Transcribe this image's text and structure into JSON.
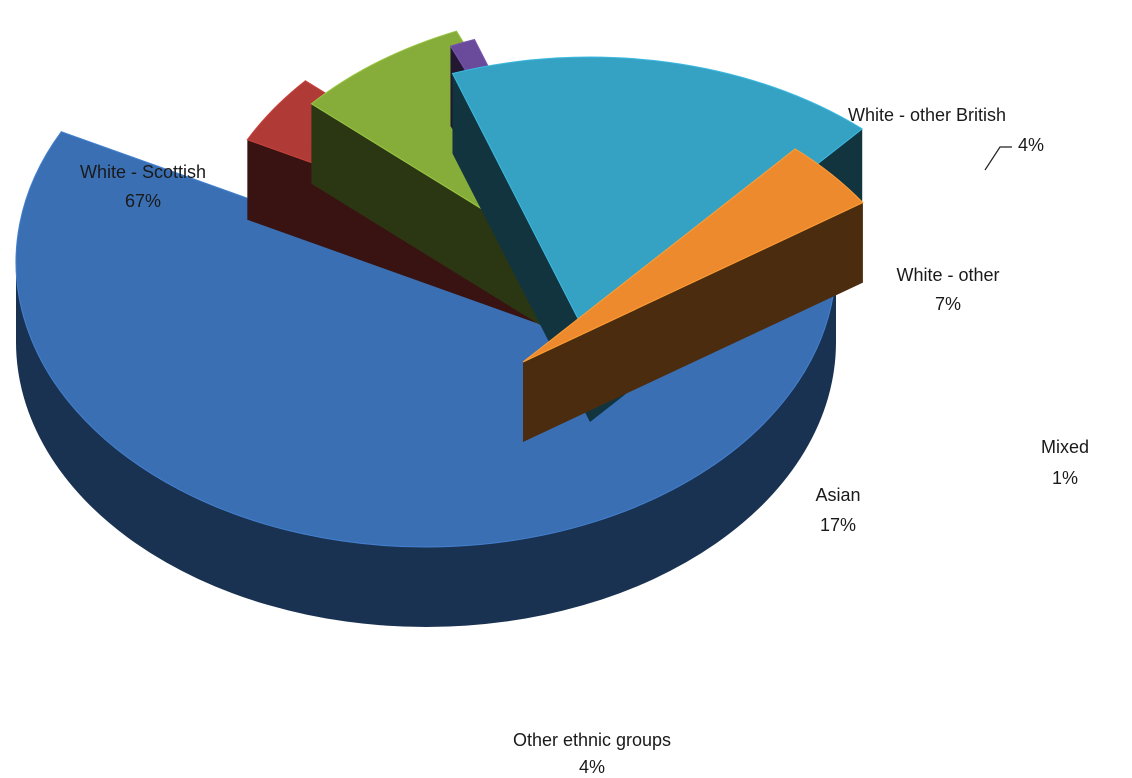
{
  "chart_data": {
    "type": "pie",
    "style": "3d-exploded",
    "categories": [
      "White - Scottish",
      "White - other British",
      "White - other",
      "Mixed",
      "Asian",
      "Other ethnic groups"
    ],
    "values": [
      67,
      4,
      7,
      1,
      17,
      4
    ],
    "labels": [
      {
        "name": "White - Scottish",
        "pct": "67%"
      },
      {
        "name": "White - other British",
        "pct": "4%"
      },
      {
        "name": "White - other",
        "pct": "7%"
      },
      {
        "name": "Mixed",
        "pct": "1%"
      },
      {
        "name": "Asian",
        "pct": "17%"
      },
      {
        "name": "Other ethnic groups",
        "pct": "4%"
      }
    ],
    "colors": [
      "#3a6fb4",
      "#b03a36",
      "#86ad3a",
      "#6a4a9a",
      "#35a2c4",
      "#ee8a2e"
    ],
    "title": "",
    "legend": "none"
  }
}
